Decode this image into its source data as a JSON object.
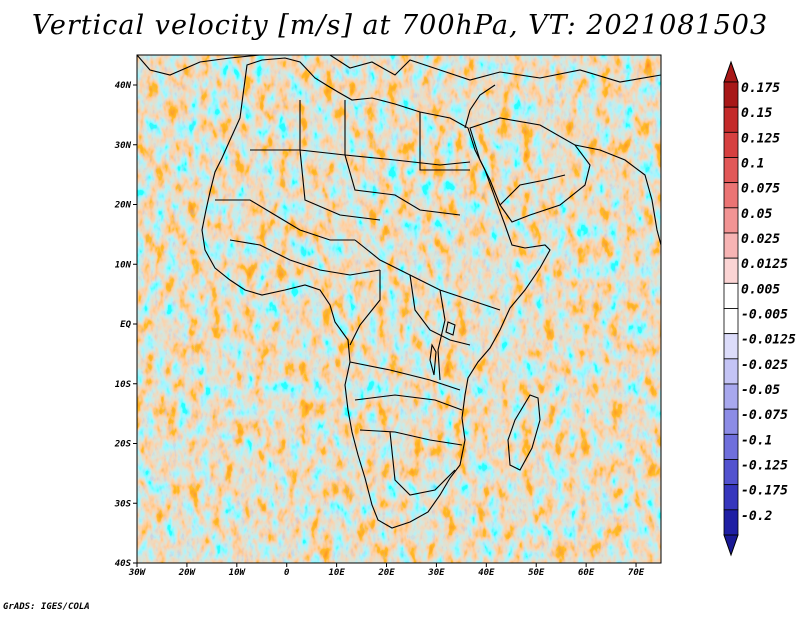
{
  "title": "Vertical velocity [m/s] at 700hPa, VT: 2021081503",
  "credit": "GrADS: IGES/COLA",
  "map": {
    "lon_range": [
      -30,
      75
    ],
    "lat_range": [
      -40,
      45
    ],
    "lon_ticks": [
      "30W",
      "20W",
      "10W",
      "0",
      "10E",
      "20E",
      "30E",
      "40E",
      "50E",
      "60E",
      "70E"
    ],
    "lat_ticks": [
      "40N",
      "30N",
      "20N",
      "10N",
      "EQ",
      "10S",
      "20S",
      "30S",
      "40S"
    ],
    "field_description_colors": {
      "positive": "#d24a4a",
      "negative": "#6b6be0",
      "neutral": "#ffffff"
    }
  },
  "colorbar": {
    "labels": [
      "0.175",
      "0.15",
      "0.125",
      "0.1",
      "0.075",
      "0.05",
      "0.025",
      "0.0125",
      "0.005",
      "-0.005",
      "-0.0125",
      "-0.025",
      "-0.05",
      "-0.075",
      "-0.1",
      "-0.125",
      "-0.175",
      "-0.2"
    ],
    "colors": [
      "#a81818",
      "#c42a2a",
      "#d64040",
      "#e25858",
      "#eb7474",
      "#f29494",
      "#f7b4b4",
      "#fbd4d4",
      "#ffffff",
      "#ffffff",
      "#dcdcfa",
      "#c4c4f5",
      "#a8a8ee",
      "#8c8ce6",
      "#6f6fdc",
      "#5252cf",
      "#3636bd",
      "#1f1fa4"
    ],
    "top_arrow_color": "#a81818",
    "bottom_arrow_color": "#1a1a96"
  }
}
